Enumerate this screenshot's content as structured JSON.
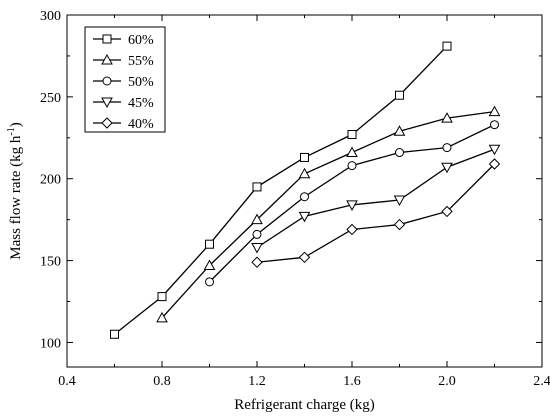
{
  "chart_data": {
    "type": "line",
    "title": "",
    "xlabel": "Refrigerant charge (kg)",
    "ylabel": "Mass flow rate",
    "ylabel_unit": "(kg h",
    "ylabel_sup": "-1",
    "ylabel_close": ")",
    "xlim": [
      0.4,
      2.4
    ],
    "ylim": [
      85,
      300
    ],
    "xticks": [
      "0.4",
      "0.8",
      "1.2",
      "1.6",
      "2.0",
      "2.4"
    ],
    "xtick_values": [
      0.4,
      0.8,
      1.2,
      1.6,
      2.0,
      2.4
    ],
    "yticks": [
      "100",
      "150",
      "200",
      "250",
      "300"
    ],
    "ytick_values": [
      100,
      150,
      200,
      250,
      300
    ],
    "grid": false,
    "legend_position": "top-left",
    "series": [
      {
        "name": "60%",
        "marker": "square",
        "x": [
          0.6,
          0.8,
          1.0,
          1.2,
          1.4,
          1.6,
          1.8,
          2.0
        ],
        "y": [
          105,
          128,
          160,
          195,
          213,
          227,
          251,
          281
        ]
      },
      {
        "name": "55%",
        "marker": "triangle-up",
        "x": [
          0.8,
          1.0,
          1.2,
          1.4,
          1.6,
          1.8,
          2.0,
          2.2
        ],
        "y": [
          115,
          147,
          175,
          203,
          216,
          229,
          237,
          241
        ]
      },
      {
        "name": "50%",
        "marker": "circle",
        "x": [
          1.0,
          1.2,
          1.4,
          1.6,
          1.8,
          2.0,
          2.2
        ],
        "y": [
          137,
          166,
          189,
          208,
          216,
          219,
          233
        ]
      },
      {
        "name": "45%",
        "marker": "triangle-down",
        "x": [
          1.2,
          1.4,
          1.6,
          1.8,
          2.0,
          2.2
        ],
        "y": [
          158,
          177,
          184,
          187,
          207,
          218
        ]
      },
      {
        "name": "40%",
        "marker": "diamond",
        "x": [
          1.2,
          1.4,
          1.6,
          1.8,
          2.0,
          2.2
        ],
        "y": [
          149,
          152,
          169,
          172,
          180,
          209
        ]
      }
    ]
  }
}
